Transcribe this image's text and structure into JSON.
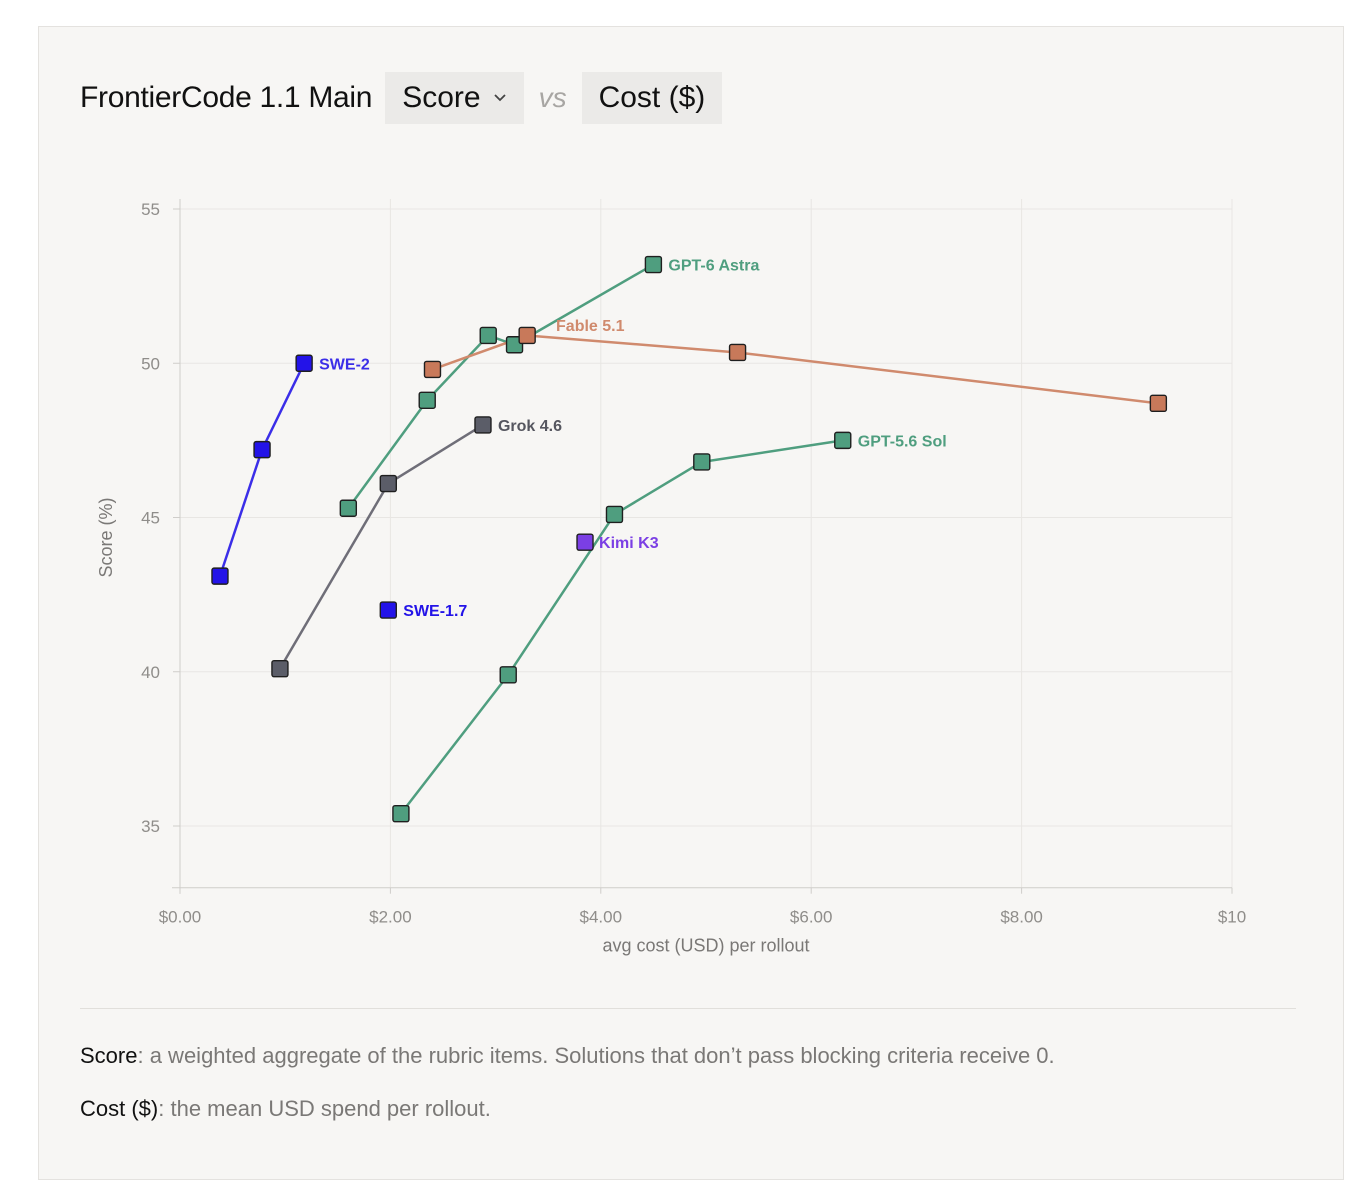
{
  "header": {
    "benchmark": "FrontierCode 1.1 Main",
    "y_metric": "Score",
    "vs": "vs",
    "x_metric": "Cost ($)",
    "dropdown_icon": "chevron-down-icon"
  },
  "definitions": [
    {
      "term": "Score",
      "text": ": a weighted aggregate of the rubric items. Solutions that don’t pass blocking criteria receive 0."
    },
    {
      "term": "Cost ($)",
      "text": ": the mean USD spend per rollout."
    }
  ],
  "chart_data": {
    "type": "scatter",
    "xlabel": "avg cost (USD) per rollout",
    "ylabel": "Score (%)",
    "xlim": [
      0,
      10
    ],
    "ylim": [
      33,
      55
    ],
    "xticks": [
      {
        "value": 0,
        "label": "$0.00"
      },
      {
        "value": 2,
        "label": "$2.00"
      },
      {
        "value": 4,
        "label": "$4.00"
      },
      {
        "value": 6,
        "label": "$6.00"
      },
      {
        "value": 8,
        "label": "$8.00"
      },
      {
        "value": 10,
        "label": "$10"
      }
    ],
    "yticks": [
      {
        "value": 35,
        "label": "35"
      },
      {
        "value": 40,
        "label": "40"
      },
      {
        "value": 45,
        "label": "45"
      },
      {
        "value": 50,
        "label": "50"
      },
      {
        "value": 55,
        "label": "55"
      }
    ],
    "grid": true,
    "series": [
      {
        "name": "GPT-6 Astra",
        "color": "#4f9e7f",
        "marker": "#4f9e7f",
        "x": [
          1.6,
          2.35,
          2.93,
          3.18,
          4.5
        ],
        "y": [
          45.3,
          48.8,
          50.9,
          50.6,
          53.2
        ]
      },
      {
        "name": "Fable 5.1",
        "color": "#d08a6d",
        "marker": "#c8795a",
        "x": [
          2.4,
          3.3,
          5.3,
          9.3
        ],
        "y": [
          49.8,
          50.9,
          50.35,
          48.7
        ]
      },
      {
        "name": "SWE-2",
        "color": "#3b2ee8",
        "marker": "#2313e8",
        "x": [
          0.38,
          0.78,
          1.18
        ],
        "y": [
          43.1,
          47.2,
          50.0
        ]
      },
      {
        "name": "Grok 4.6",
        "color": "#6f6e78",
        "marker": "#5b5d68",
        "x": [
          0.95,
          1.98,
          2.88
        ],
        "y": [
          40.1,
          46.1,
          48.0
        ]
      },
      {
        "name": "GPT-5.6 Sol",
        "color": "#4f9e7f",
        "marker": "#4f9e7f",
        "x": [
          2.1,
          3.12,
          4.13,
          4.96,
          6.3
        ],
        "y": [
          35.4,
          39.9,
          45.1,
          46.8,
          47.5
        ]
      },
      {
        "name": "Kimi K3",
        "color": "#7b3fe4",
        "marker": "#7b3fe4",
        "x": [
          3.85
        ],
        "y": [
          44.2
        ]
      },
      {
        "name": "SWE-1.7",
        "color": "#2313e8",
        "marker": "#2313e8",
        "x": [
          1.98
        ],
        "y": [
          42.0
        ]
      }
    ]
  }
}
